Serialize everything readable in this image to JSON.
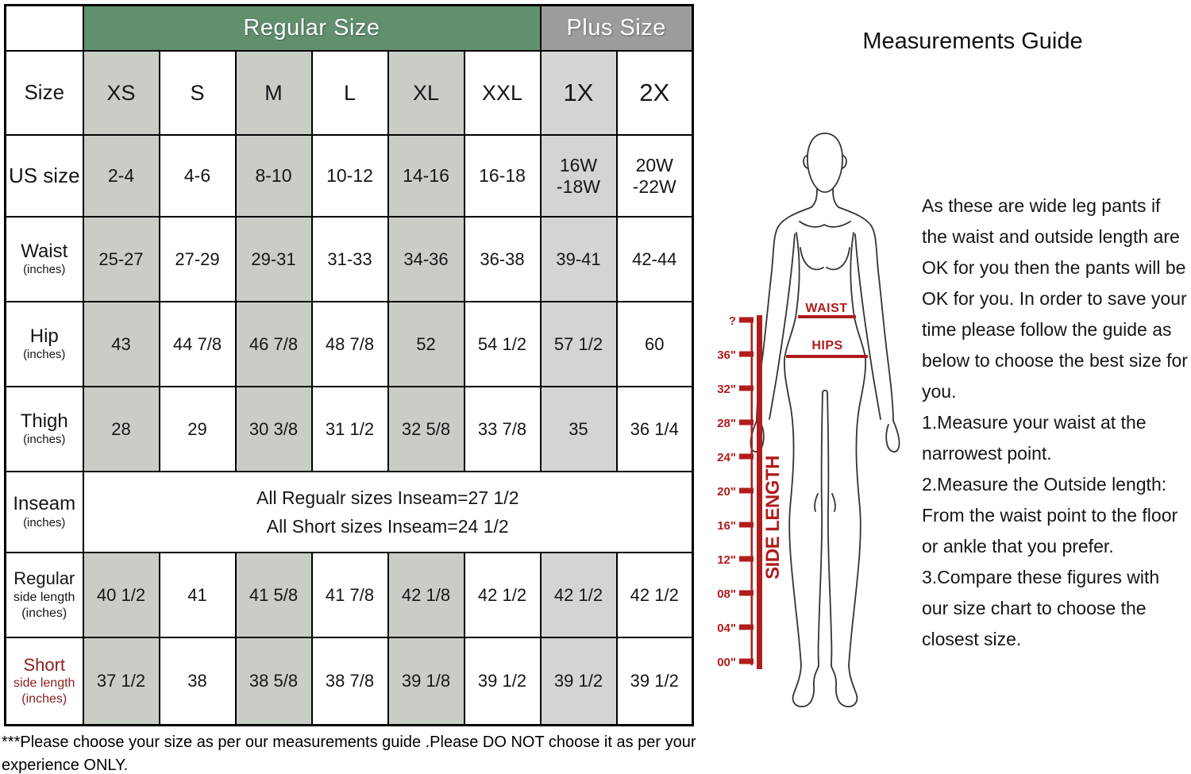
{
  "table": {
    "group_headers": [
      {
        "id": "regular",
        "label": "Regular Size",
        "span": 6
      },
      {
        "id": "plus",
        "label": "Plus Size",
        "span": 2
      }
    ],
    "size_columns": [
      "XS",
      "S",
      "M",
      "L",
      "XL",
      "XXL",
      "1X",
      "2X"
    ],
    "rows": [
      {
        "id": "size",
        "label": "Size",
        "sub": "",
        "values": [
          "XS",
          "S",
          "M",
          "L",
          "XL",
          "XXL",
          "1X",
          "2X"
        ]
      },
      {
        "id": "us-size",
        "label": "US size",
        "sub": "",
        "values": [
          "2-4",
          "4-6",
          "8-10",
          "10-12",
          "14-16",
          "16-18",
          "16W\n-18W",
          "20W\n-22W"
        ]
      },
      {
        "id": "waist",
        "label": "Waist",
        "sub": "(inches)",
        "values": [
          "25-27",
          "27-29",
          "29-31",
          "31-33",
          "34-36",
          "36-38",
          "39-41",
          "42-44"
        ]
      },
      {
        "id": "hip",
        "label": "Hip",
        "sub": "(inches)",
        "values": [
          "43",
          "44 7/8",
          "46 7/8",
          "48 7/8",
          "52",
          "54 1/2",
          "57 1/2",
          "60"
        ]
      },
      {
        "id": "thigh",
        "label": "Thigh",
        "sub": "(inches)",
        "values": [
          "28",
          "29",
          "30 3/8",
          "31 1/2",
          "32 5/8",
          "33 7/8",
          "35",
          "36 1/4"
        ]
      },
      {
        "id": "inseam",
        "label": "Inseam",
        "sub": "(inches)",
        "merged": [
          "All Regualr sizes Inseam=27 1/2",
          "All Short sizes Inseam=24 1/2"
        ]
      },
      {
        "id": "regular-side-length",
        "label": "Regular",
        "sub": "side length\n(inches)",
        "values": [
          "40 1/2",
          "41",
          "41 5/8",
          "41 7/8",
          "42 1/8",
          "42 1/2",
          "42 1/2",
          "42 1/2"
        ]
      },
      {
        "id": "short-side-length",
        "label": "Short",
        "sub": "side length\n(inches)",
        "red": true,
        "values": [
          "37 1/2",
          "38",
          "38 5/8",
          "38 7/8",
          "39 1/8",
          "39 1/2",
          "39 1/2",
          "39 1/2"
        ]
      }
    ]
  },
  "footnote": "***Please choose your size as per our measurements guide .Please DO NOT choose it as per your experience ONLY.",
  "guide": {
    "title": "Measurements Guide",
    "paragraph": "As these are wide leg pants if the waist and outside length are OK for you then the pants will be OK for you. In order to save your time please follow the guide as below to choose the best size for you.",
    "steps": [
      "1.Measure your waist at the narrowest point.",
      "2.Measure the Outside length: From the waist point to the floor or ankle that you prefer.",
      "3.Compare these figures with our size chart to choose the closest size."
    ],
    "figure": {
      "waist_label": "WAIST",
      "hips_label": "HIPS",
      "ruler_label": "SIDE LENGTH",
      "ruler_ticks": [
        "?",
        "36\"",
        "32\"",
        "28\"",
        "24\"",
        "20\"",
        "16\"",
        "12\"",
        "08\"",
        "04\"",
        "00\""
      ]
    }
  },
  "colors": {
    "header_green": "#61906F",
    "header_gray": "#9C9C9C",
    "shade_green": "#C8CEC6",
    "shade_gray": "#D4D4D4",
    "accent_red_dark": "#8B1E1E",
    "ruler_red": "#B11C1C"
  }
}
